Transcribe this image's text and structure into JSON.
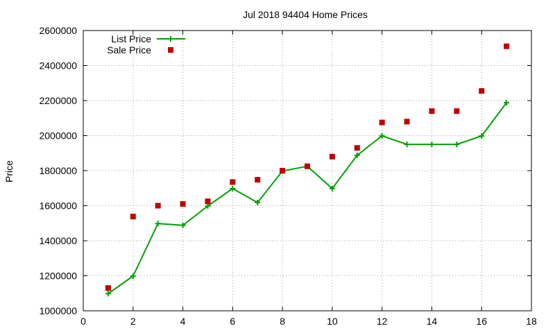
{
  "chart_data": {
    "type": "line",
    "title": "Jul 2018 94404 Home Prices",
    "xlabel": "",
    "ylabel": "Price",
    "xlim": [
      0,
      18
    ],
    "ylim": [
      1000000,
      2600000
    ],
    "xticks": [
      0,
      2,
      4,
      6,
      8,
      10,
      12,
      14,
      16,
      18
    ],
    "yticks": [
      1000000,
      1200000,
      1400000,
      1600000,
      1800000,
      2000000,
      2200000,
      2400000,
      2600000
    ],
    "grid": true,
    "legend_position": "top-left",
    "x": [
      1,
      2,
      3,
      4,
      5,
      6,
      7,
      8,
      9,
      10,
      11,
      12,
      13,
      14,
      15,
      16,
      17
    ],
    "series": [
      {
        "name": "List Price",
        "style": "line-points",
        "marker": "plus",
        "color": "#00a000",
        "values": [
          1098000,
          1198000,
          1498000,
          1488000,
          1598000,
          1698000,
          1618000,
          1798000,
          1825000,
          1698000,
          1888000,
          1999000,
          1950000,
          1950000,
          1950000,
          1998000,
          2188000
        ]
      },
      {
        "name": "Sale Price",
        "style": "points",
        "marker": "square",
        "color": "#c00000",
        "values": [
          1130000,
          1538000,
          1600000,
          1610000,
          1625000,
          1735000,
          1748000,
          1800000,
          1825000,
          1880000,
          1930000,
          2075000,
          2080000,
          2140000,
          2140000,
          2255000,
          2510000
        ]
      }
    ]
  }
}
